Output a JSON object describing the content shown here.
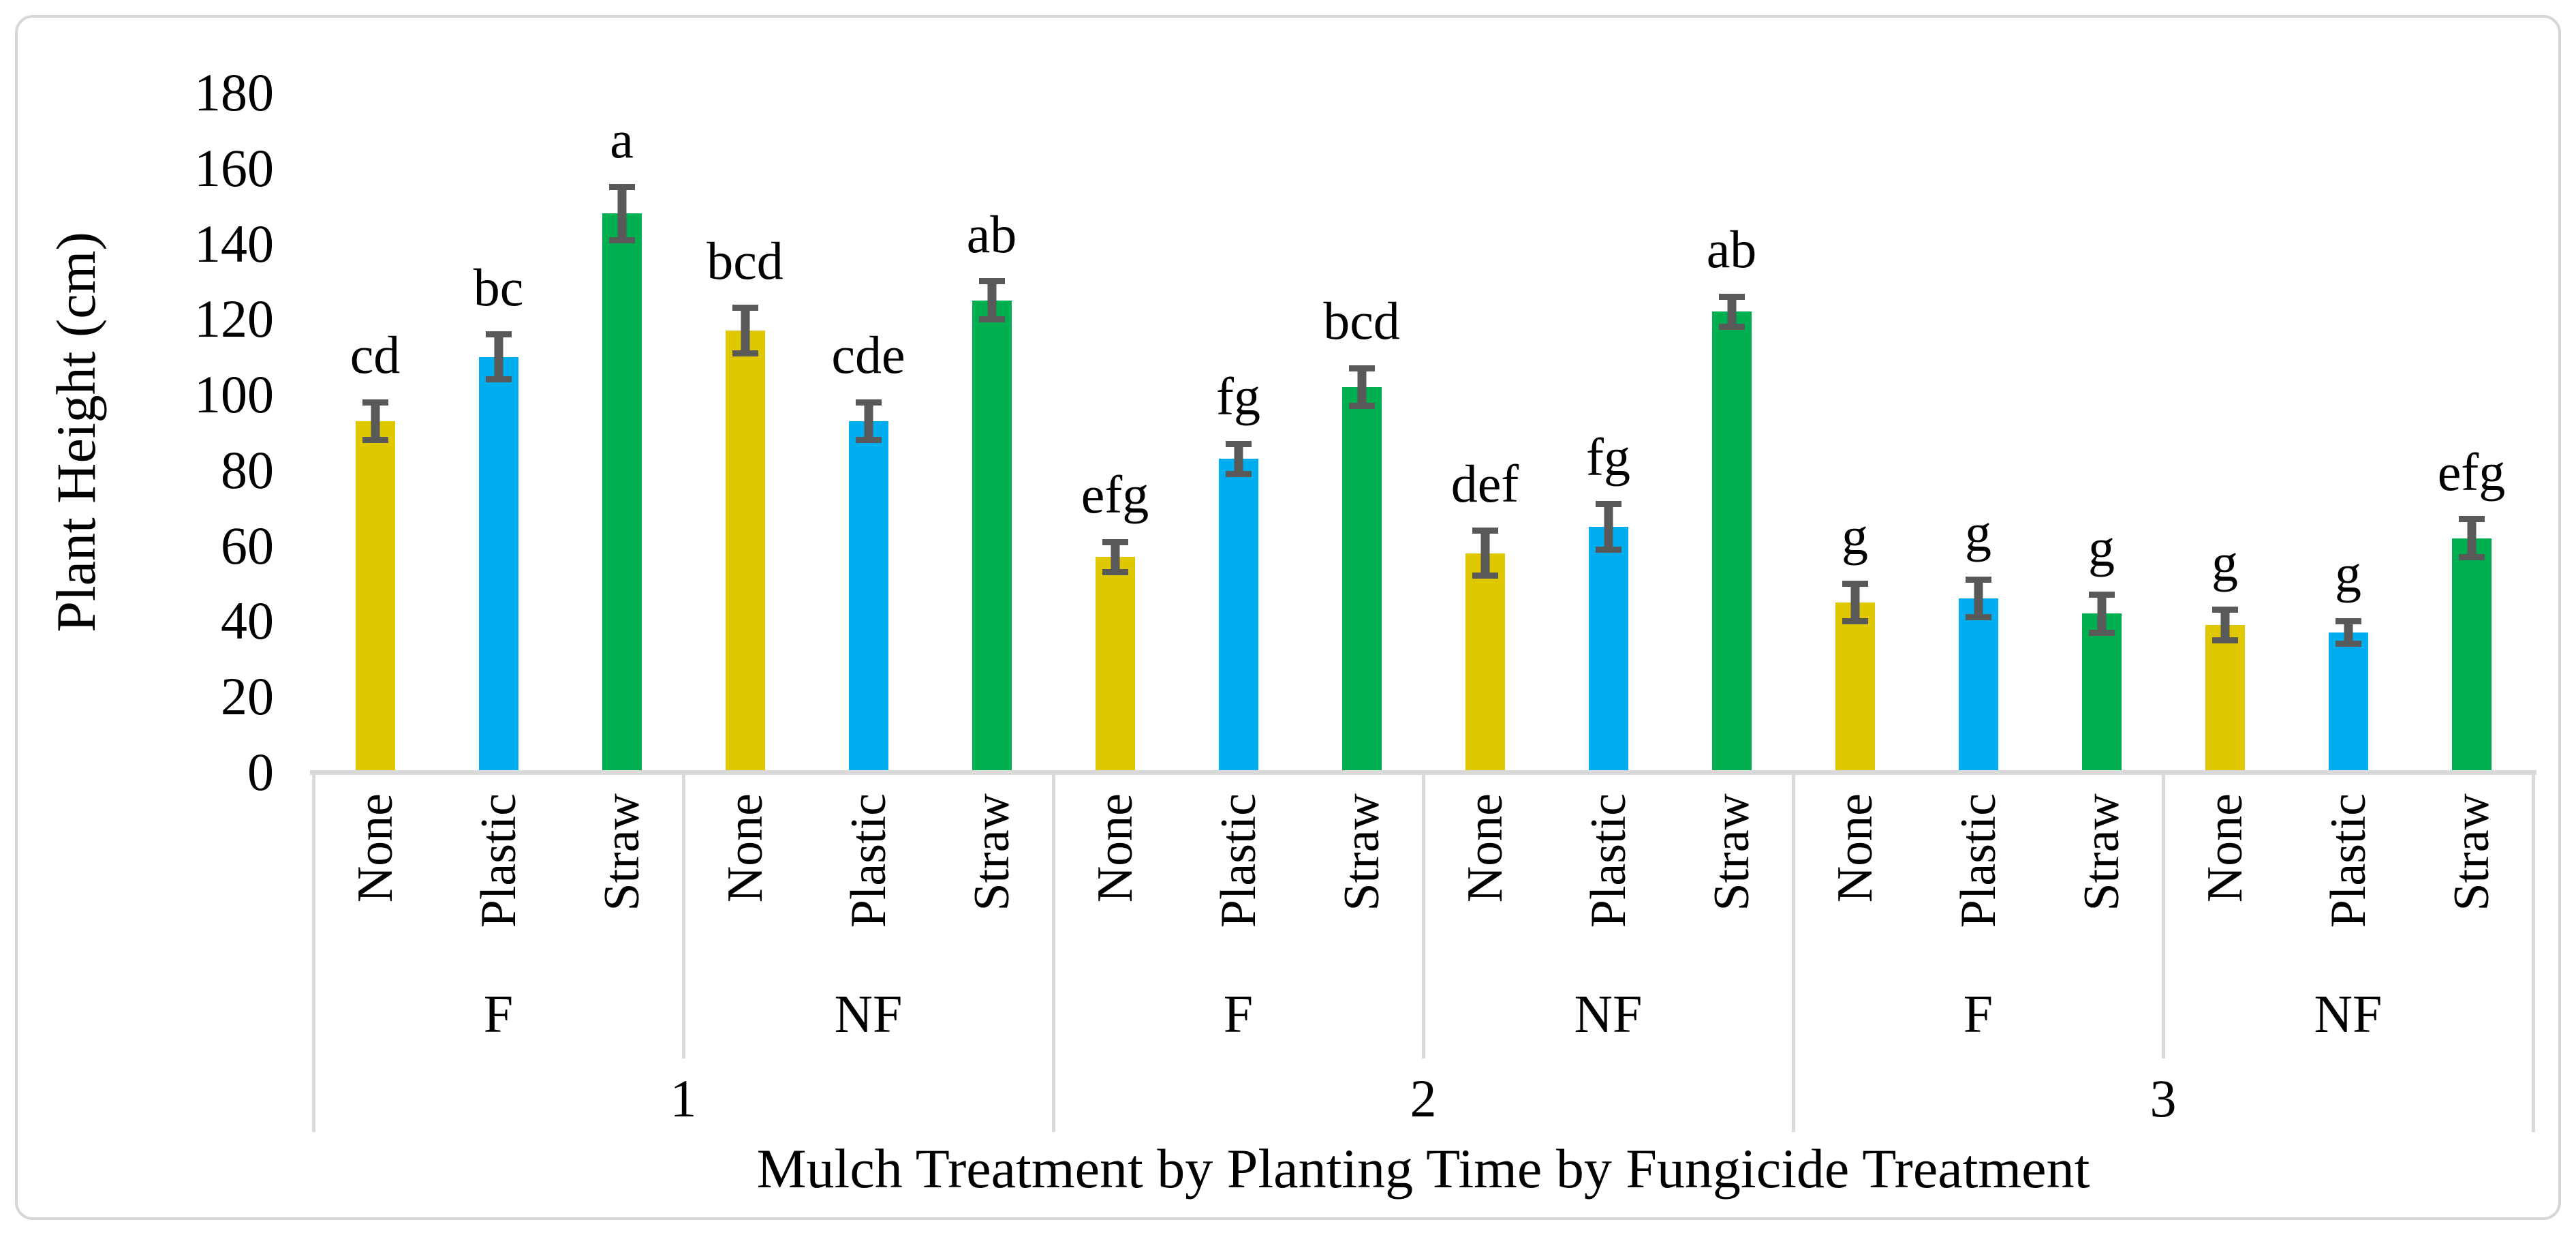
{
  "figure": {
    "colors": {
      "None": "#E0C800",
      "Plastic": "#00AEEF",
      "Straw": "#00B050",
      "error_bar": "#595959",
      "axis_line": "#D9D9D9",
      "border": "#D6D6D6"
    }
  },
  "chart_data": {
    "type": "bar",
    "title": "",
    "ylabel": "Plant Height (cm)",
    "xlabel": "Mulch Treatment by Planting Time by Fungicide Treatment",
    "ylim": [
      0,
      180
    ],
    "yticks": [
      0,
      20,
      40,
      60,
      80,
      100,
      120,
      140,
      160,
      180
    ],
    "grid": false,
    "legend_position": "none",
    "error_bars": true,
    "fungicide_labels": [
      "F",
      "NF",
      "F",
      "NF",
      "F",
      "NF"
    ],
    "planting_labels": [
      "1",
      "2",
      "3"
    ],
    "bars": [
      {
        "planting_time": "1",
        "fungicide": "F",
        "mulch": "None",
        "value": 93,
        "error": 5,
        "letter": "cd"
      },
      {
        "planting_time": "1",
        "fungicide": "F",
        "mulch": "Plastic",
        "value": 110,
        "error": 6,
        "letter": "bc"
      },
      {
        "planting_time": "1",
        "fungicide": "F",
        "mulch": "Straw",
        "value": 148,
        "error": 7,
        "letter": "a"
      },
      {
        "planting_time": "1",
        "fungicide": "NF",
        "mulch": "None",
        "value": 117,
        "error": 6,
        "letter": "bcd"
      },
      {
        "planting_time": "1",
        "fungicide": "NF",
        "mulch": "Plastic",
        "value": 93,
        "error": 5,
        "letter": "cde"
      },
      {
        "planting_time": "1",
        "fungicide": "NF",
        "mulch": "Straw",
        "value": 125,
        "error": 5,
        "letter": "ab"
      },
      {
        "planting_time": "2",
        "fungicide": "F",
        "mulch": "None",
        "value": 57,
        "error": 4,
        "letter": "efg"
      },
      {
        "planting_time": "2",
        "fungicide": "F",
        "mulch": "Plastic",
        "value": 83,
        "error": 4,
        "letter": "fg"
      },
      {
        "planting_time": "2",
        "fungicide": "F",
        "mulch": "Straw",
        "value": 102,
        "error": 5,
        "letter": "bcd"
      },
      {
        "planting_time": "2",
        "fungicide": "NF",
        "mulch": "None",
        "value": 58,
        "error": 6,
        "letter": "def"
      },
      {
        "planting_time": "2",
        "fungicide": "NF",
        "mulch": "Plastic",
        "value": 65,
        "error": 6,
        "letter": "fg"
      },
      {
        "planting_time": "2",
        "fungicide": "NF",
        "mulch": "Straw",
        "value": 122,
        "error": 4,
        "letter": "ab"
      },
      {
        "planting_time": "3",
        "fungicide": "F",
        "mulch": "None",
        "value": 45,
        "error": 5,
        "letter": "g"
      },
      {
        "planting_time": "3",
        "fungicide": "F",
        "mulch": "Plastic",
        "value": 46,
        "error": 5,
        "letter": "g"
      },
      {
        "planting_time": "3",
        "fungicide": "F",
        "mulch": "Straw",
        "value": 42,
        "error": 5,
        "letter": "g"
      },
      {
        "planting_time": "3",
        "fungicide": "NF",
        "mulch": "None",
        "value": 39,
        "error": 4,
        "letter": "g"
      },
      {
        "planting_time": "3",
        "fungicide": "NF",
        "mulch": "Plastic",
        "value": 37,
        "error": 3,
        "letter": "g"
      },
      {
        "planting_time": "3",
        "fungicide": "NF",
        "mulch": "Straw",
        "value": 62,
        "error": 5,
        "letter": "efg"
      }
    ]
  }
}
